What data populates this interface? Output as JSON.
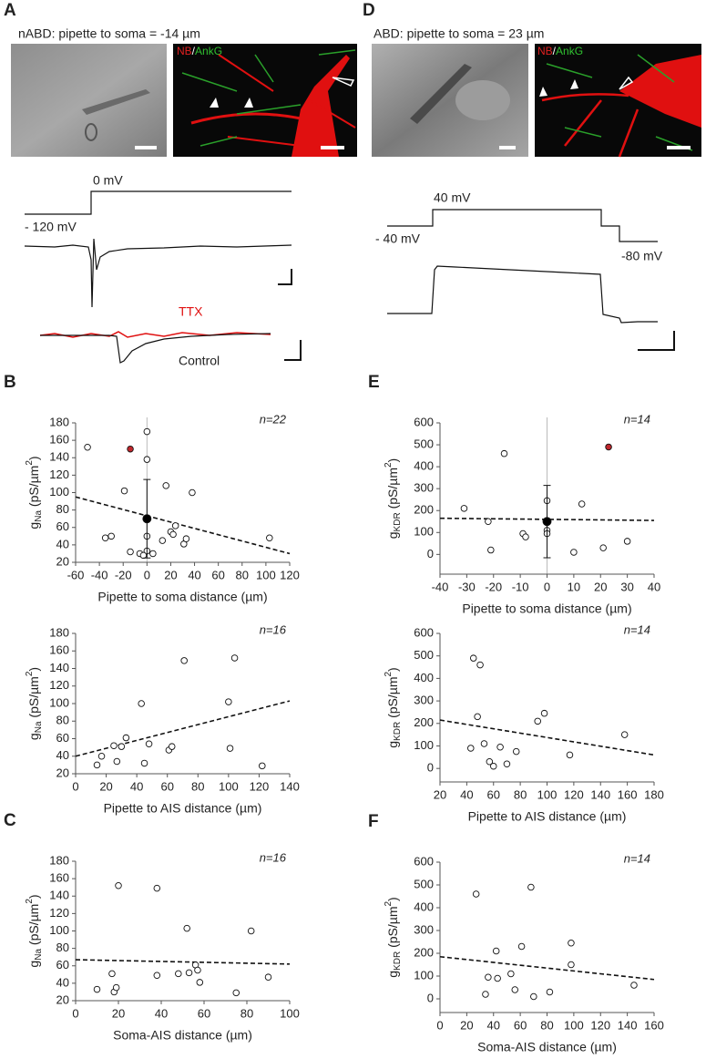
{
  "figure_top": {
    "A": {
      "letter": "A",
      "title": "nABD: pipette to soma = -14 µm",
      "image_label": [
        "NB",
        "/",
        "AnkG"
      ],
      "step_labels": [
        "0 mV",
        "- 120 mV"
      ],
      "trace_labels": [
        "TTX",
        "Control"
      ]
    },
    "D": {
      "letter": "D",
      "title": "ABD: pipette to soma = 23 µm",
      "image_label": [
        "NB",
        "/",
        "AnkG"
      ],
      "step_labels": [
        "40 mV",
        "- 40 mV",
        "-80 mV"
      ]
    }
  },
  "chart_data": [
    {
      "type": "scatter",
      "panel_label": "B",
      "annotation": "n=22",
      "xlabel": "Pipette to soma distance (µm)",
      "ylabel_parts": [
        "g",
        "Na",
        " (pS/µm",
        "2",
        ")"
      ],
      "xlim": [
        -60,
        120
      ],
      "xticks": [
        -60,
        -40,
        -20,
        0,
        20,
        40,
        60,
        80,
        100,
        120
      ],
      "ylim": [
        20,
        180
      ],
      "yticks": [
        20,
        40,
        60,
        80,
        100,
        120,
        140,
        160,
        180
      ],
      "vline_x": 0,
      "series": [
        {
          "color": "#ffffff",
          "x": [
            -50,
            0,
            0,
            -19,
            16,
            38,
            103,
            -35,
            -30,
            -14,
            -6,
            0,
            0,
            5,
            13,
            20,
            22,
            24,
            31,
            33,
            -3
          ],
          "values": [
            152,
            170,
            138,
            102,
            108,
            100,
            48,
            48,
            50,
            32,
            30,
            33,
            50,
            30,
            45,
            55,
            52,
            62,
            41,
            47,
            28
          ]
        },
        {
          "color": "#c0272d",
          "x": [
            -14
          ],
          "values": [
            150
          ]
        },
        {
          "color": "#000000",
          "x": [
            0
          ],
          "values": [
            70
          ],
          "errors": [
            45
          ]
        }
      ],
      "trendline": {
        "x": [
          -60,
          120
        ],
        "values": [
          95,
          30
        ]
      }
    },
    {
      "type": "scatter",
      "annotation": "n=16",
      "xlabel": "Pipette to AIS distance (µm)",
      "ylabel_parts": [
        "g",
        "Na",
        " (pS/µm",
        "2",
        ")"
      ],
      "xlim": [
        0,
        140
      ],
      "xticks": [
        0,
        20,
        40,
        60,
        80,
        100,
        120,
        140
      ],
      "ylim": [
        20,
        180
      ],
      "yticks": [
        20,
        40,
        60,
        80,
        100,
        120,
        140,
        160,
        180
      ],
      "series": [
        {
          "color": "#ffffff",
          "x": [
            14,
            17,
            25,
            27,
            30,
            33,
            43,
            45,
            48,
            61,
            63,
            71,
            100,
            101,
            104,
            122
          ],
          "values": [
            30,
            40,
            52,
            34,
            51,
            61,
            100,
            32,
            54,
            47,
            51,
            149,
            102,
            49,
            152,
            29
          ]
        }
      ],
      "trendline": {
        "x": [
          0,
          140
        ],
        "values": [
          40,
          103
        ]
      }
    },
    {
      "type": "scatter",
      "panel_label": "C",
      "annotation": "n=16",
      "xlabel": "Soma-AIS distance (µm)",
      "ylabel_parts": [
        "g",
        "Na",
        " (pS/µm",
        "2",
        ")"
      ],
      "xlim": [
        0,
        100
      ],
      "xticks": [
        0,
        20,
        40,
        60,
        80,
        100
      ],
      "ylim": [
        20,
        180
      ],
      "yticks": [
        20,
        40,
        60,
        80,
        100,
        120,
        140,
        160,
        180
      ],
      "series": [
        {
          "color": "#ffffff",
          "x": [
            10,
            17,
            18,
            19,
            20,
            38,
            38,
            48,
            52,
            53,
            56,
            57,
            58,
            75,
            82,
            90
          ],
          "values": [
            33,
            51,
            30,
            35,
            152,
            149,
            49,
            51,
            103,
            52,
            61,
            55,
            41,
            29,
            100,
            47
          ]
        }
      ],
      "trendline": {
        "x": [
          0,
          100
        ],
        "values": [
          67,
          62
        ]
      }
    },
    {
      "type": "scatter",
      "panel_label": "E",
      "annotation": "n=14",
      "xlabel": "Pipette to soma distance (µm)",
      "ylabel_parts": [
        "g",
        "KDR",
        " (pS/µm",
        "2",
        ")"
      ],
      "xlim": [
        -40,
        40
      ],
      "xticks": [
        -40,
        -30,
        -20,
        -10,
        0,
        10,
        20,
        30,
        40
      ],
      "ylim": [
        -90,
        600
      ],
      "yticks": [
        0,
        100,
        200,
        300,
        400,
        500,
        600
      ],
      "vline_x": 0,
      "series": [
        {
          "color": "#ffffff",
          "x": [
            -31,
            -22,
            -21,
            -16,
            -9,
            -8,
            0,
            0,
            0,
            10,
            13,
            21,
            30
          ],
          "values": [
            210,
            150,
            20,
            460,
            95,
            80,
            245,
            110,
            95,
            10,
            230,
            30,
            60
          ]
        },
        {
          "color": "#c0272d",
          "x": [
            23
          ],
          "values": [
            490
          ]
        },
        {
          "color": "#000000",
          "x": [
            0
          ],
          "values": [
            150
          ],
          "errors": [
            165
          ]
        }
      ],
      "trendline": {
        "x": [
          -40,
          40
        ],
        "values": [
          165,
          155
        ]
      }
    },
    {
      "type": "scatter",
      "annotation": "n=14",
      "xlabel": "Pipette to AIS distance (µm)",
      "ylabel_parts": [
        "g",
        "KDR",
        " (pS/µm",
        "2",
        ")"
      ],
      "xlim": [
        20,
        180
      ],
      "xticks": [
        20,
        40,
        60,
        80,
        100,
        120,
        140,
        160,
        180
      ],
      "ylim": [
        -60,
        600
      ],
      "yticks": [
        0,
        100,
        200,
        300,
        400,
        500,
        600
      ],
      "series": [
        {
          "color": "#ffffff",
          "x": [
            43,
            45,
            48,
            50,
            53,
            57,
            60,
            65,
            70,
            77,
            93,
            98,
            117,
            158
          ],
          "values": [
            90,
            490,
            230,
            460,
            110,
            30,
            10,
            95,
            20,
            75,
            210,
            245,
            60,
            150
          ]
        }
      ],
      "trendline": {
        "x": [
          20,
          180
        ],
        "values": [
          215,
          60
        ]
      }
    },
    {
      "type": "scatter",
      "panel_label": "F",
      "annotation": "n=14",
      "xlabel": "Soma-AIS distance (µm)",
      "ylabel_parts": [
        "g",
        "KDR",
        " (pS/µm",
        "2",
        ")"
      ],
      "xlim": [
        0,
        160
      ],
      "xticks": [
        0,
        20,
        40,
        60,
        80,
        100,
        120,
        140,
        160
      ],
      "ylim": [
        -60,
        600
      ],
      "yticks": [
        0,
        100,
        200,
        300,
        400,
        500,
        600
      ],
      "series": [
        {
          "color": "#ffffff",
          "x": [
            27,
            34,
            36,
            42,
            43,
            53,
            56,
            61,
            70,
            68,
            82,
            98,
            98,
            145
          ],
          "values": [
            460,
            20,
            95,
            210,
            90,
            110,
            40,
            230,
            10,
            490,
            30,
            245,
            150,
            60
          ]
        }
      ],
      "trendline": {
        "x": [
          0,
          160
        ],
        "values": [
          185,
          85
        ]
      }
    }
  ]
}
